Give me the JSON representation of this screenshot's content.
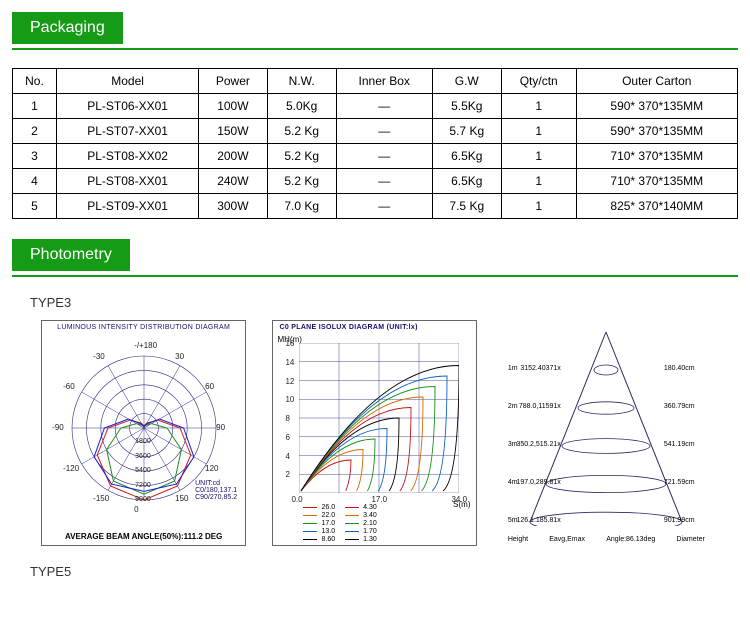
{
  "sections": {
    "packaging_title": "Packaging",
    "photometry_title": "Photometry"
  },
  "packaging_table": {
    "columns": [
      "No.",
      "Model",
      "Power",
      "N.W.",
      "Inner Box",
      "G.W",
      "Qty/ctn",
      "Outer Carton"
    ],
    "rows": [
      [
        "1",
        "PL-ST06-XX01",
        "100W",
        "5.0Kg",
        "—",
        "5.5Kg",
        "1",
        "590* 370*135MM"
      ],
      [
        "2",
        "PL-ST07-XX01",
        "150W",
        "5.2 Kg",
        "—",
        "5.7 Kg",
        "1",
        "590* 370*135MM"
      ],
      [
        "3",
        "PL-ST08-XX02",
        "200W",
        "5.2 Kg",
        "—",
        "6.5Kg",
        "1",
        "710* 370*135MM"
      ],
      [
        "4",
        "PL-ST08-XX01",
        "240W",
        "5.2 Kg",
        "—",
        "6.5Kg",
        "1",
        "710* 370*135MM"
      ],
      [
        "5",
        "PL-ST09-XX01",
        "300W",
        "7.0 Kg",
        "—",
        "7.5 Kg",
        "1",
        "825* 370*140MM"
      ]
    ]
  },
  "type3_label": "TYPE3",
  "type5_label": "TYPE5",
  "polar": {
    "title": "LUMINOUS INTENSITY DISTRIBUTION DIAGRAM",
    "angles": [
      "-/+180",
      "-150",
      "150",
      "-120",
      "120",
      "-90",
      "90",
      "-60",
      "60",
      "-30",
      "30",
      "0"
    ],
    "rings": [
      "1800",
      "3600",
      "5400",
      "7200",
      "9000"
    ],
    "unit_lines": [
      "UNIT:cd",
      "C0/180,137.1",
      "C90/270,85.2"
    ],
    "avg_beam": "AVERAGE BEAM ANGLE(50%):111.2 DEG",
    "ring_color": "#2a2a88",
    "curve_colors": [
      "#d41a1a",
      "#1a8f1a",
      "#1a1ad4"
    ]
  },
  "isolux": {
    "title": "C0 PLANE ISOLUX DIAGRAM (UNIT:lx)",
    "y_axis_label": "MH(m)",
    "y_ticks": [
      "16",
      "14",
      "12",
      "10",
      "8",
      "6",
      "4",
      "2"
    ],
    "x_ticks": [
      "0.0",
      "17.0",
      "34.0"
    ],
    "x_axis_label": "S(m)",
    "legend": [
      {
        "v": "26.0",
        "c": "#c01616"
      },
      {
        "v": "22.0",
        "c": "#d46a00"
      },
      {
        "v": "17.0",
        "c": "#1a8f1a"
      },
      {
        "v": "13.0",
        "c": "#0b62c4"
      },
      {
        "v": "8.60",
        "c": "#000000"
      },
      {
        "v": "4.30",
        "c": "#c01616"
      },
      {
        "v": "3.40",
        "c": "#d46a00"
      },
      {
        "v": "2.10",
        "c": "#1a8f1a"
      },
      {
        "v": "1.70",
        "c": "#0b62c4"
      },
      {
        "v": "1.30",
        "c": "#000000"
      }
    ],
    "grid_color": "#4a4a9a"
  },
  "cone": {
    "rows": [
      {
        "m": "1m",
        "left": "3152.40371x",
        "right": "180.40cm"
      },
      {
        "m": "2m",
        "left": "788.0,11591x",
        "right": "360.79cm"
      },
      {
        "m": "3m",
        "left": "350.2,515.21x",
        "right": "541.19cm"
      },
      {
        "m": "4m",
        "left": "197.0,289.81x",
        "right": "721.59cm"
      },
      {
        "m": "5m",
        "left": "126.1.185.81x",
        "right": "901.99cm"
      }
    ],
    "footer": [
      "Height",
      "Eavg,Emax",
      "Angle:86.13deg",
      "Diameter"
    ],
    "line_color": "#2a2a66"
  }
}
